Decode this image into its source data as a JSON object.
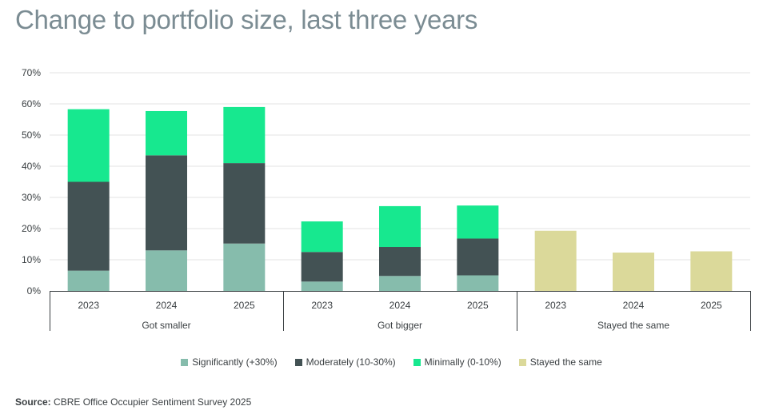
{
  "title": "Change to portfolio size, last three years",
  "chart_data": {
    "type": "bar",
    "stacked": true,
    "ylim": [
      0,
      70
    ],
    "yticks": [
      "0%",
      "10%",
      "20%",
      "30%",
      "40%",
      "50%",
      "60%",
      "70%"
    ],
    "grid": true,
    "legend_position": "bottom",
    "groups": [
      {
        "label": "Got smaller",
        "categories": [
          "2023",
          "2024",
          "2025"
        ],
        "series": [
          {
            "name": "Significantly (+30%)",
            "values": [
              6.5,
              13,
              15.2
            ]
          },
          {
            "name": "Moderately (10-30%)",
            "values": [
              28.5,
              30.5,
              25.8
            ]
          },
          {
            "name": "Minimally (0-10%)",
            "values": [
              23.3,
              14.2,
              18
            ]
          }
        ]
      },
      {
        "label": "Got bigger",
        "categories": [
          "2023",
          "2024",
          "2025"
        ],
        "series": [
          {
            "name": "Significantly (+30%)",
            "values": [
              3,
              4.8,
              5
            ]
          },
          {
            "name": "Moderately (10-30%)",
            "values": [
              9.5,
              9.3,
              11.8
            ]
          },
          {
            "name": "Minimally (0-10%)",
            "values": [
              9.8,
              13.1,
              10.6
            ]
          }
        ]
      },
      {
        "label": "Stayed the same",
        "categories": [
          "2023",
          "2024",
          "2025"
        ],
        "series": [
          {
            "name": "Stayed the same",
            "values": [
              19.3,
              12.3,
              12.7
            ]
          }
        ]
      }
    ]
  },
  "legend": [
    {
      "label": "Significantly (+30%)",
      "color": "#86bcac"
    },
    {
      "label": "Moderately (10-30%)",
      "color": "#435254"
    },
    {
      "label": "Minimally (0-10%)",
      "color": "#17e88f"
    },
    {
      "label": "Stayed the same",
      "color": "#dbd99a"
    }
  ],
  "source": {
    "label": "Source:",
    "text": "CBRE Office Occupier Sentiment Survey 2025"
  }
}
